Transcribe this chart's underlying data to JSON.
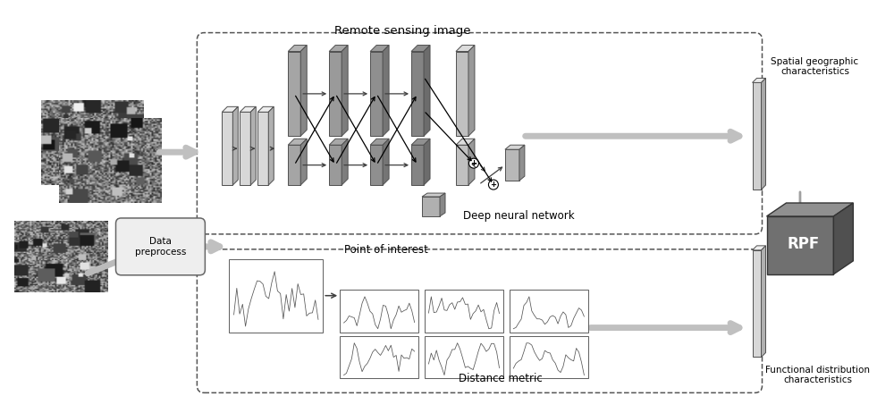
{
  "bg_color": "#ffffff",
  "remote_sensing_label": "Remote sensing image",
  "deep_nn_label": "Deep neural network",
  "poi_label": "Point of interest",
  "distance_label": "Distance metric",
  "data_preprocess_label": "Data\npreprocess",
  "spatial_geo_label": "Spatial geographic\ncharacteristics",
  "functional_dist_label": "Functional distribution\ncharacteristics",
  "rpf_label": "RPF",
  "lighter_gray": "#e8e8e8",
  "box_gray": "#b8b8b8",
  "dark_layer": "#888888",
  "mid_layer": "#b0b0b0",
  "light_layer": "#d0d0d0"
}
